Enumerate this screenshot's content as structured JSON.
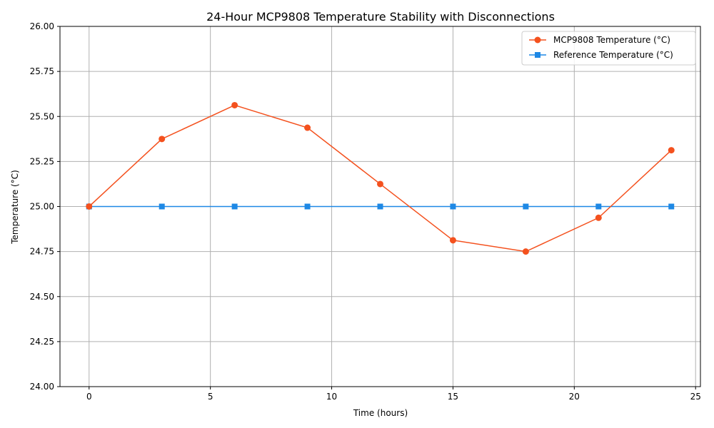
{
  "chart_data": {
    "type": "line",
    "title": "24-Hour MCP9808 Temperature Stability with Disconnections",
    "xlabel": "Time (hours)",
    "ylabel": "Temperature (°C)",
    "x": [
      0,
      3,
      6,
      9,
      12,
      15,
      18,
      21,
      24
    ],
    "xlim": [
      -1.2,
      25.2
    ],
    "ylim": [
      24.0,
      26.0
    ],
    "xticks": [
      0,
      5,
      10,
      15,
      20,
      25
    ],
    "yticks": [
      24.0,
      24.25,
      24.5,
      24.75,
      25.0,
      25.25,
      25.5,
      25.75,
      26.0
    ],
    "xtick_labels": [
      "0",
      "5",
      "10",
      "15",
      "20",
      "25"
    ],
    "ytick_labels": [
      "24.00",
      "24.25",
      "24.50",
      "24.75",
      "25.00",
      "25.25",
      "25.50",
      "25.75",
      "26.00"
    ],
    "grid": true,
    "legend_position": "top-right",
    "series": [
      {
        "name": "MCP9808 Temperature (°C)",
        "values": [
          25.0,
          25.375,
          25.5625,
          25.4375,
          25.125,
          24.8125,
          24.75,
          24.9375,
          25.3125
        ],
        "color": "#f4511e",
        "marker": "circle"
      },
      {
        "name": "Reference Temperature (°C)",
        "values": [
          25.0,
          25.0,
          25.0,
          25.0,
          25.0,
          25.0,
          25.0,
          25.0,
          25.0
        ],
        "color": "#1e88e5",
        "marker": "square"
      }
    ]
  }
}
